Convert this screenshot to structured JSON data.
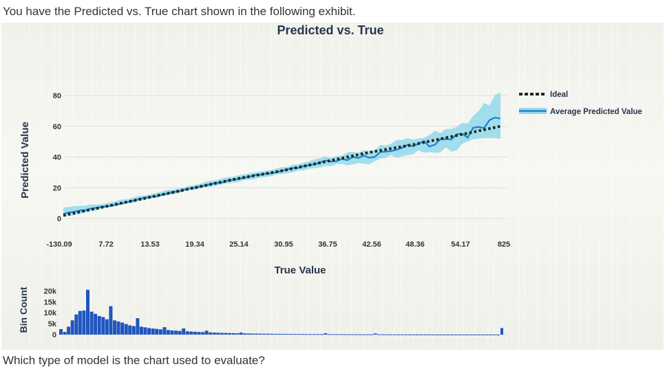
{
  "page": {
    "question_top": "You have the Predicted vs. True chart shown in the following exhibit.",
    "question_bottom": "Which type of model is the chart used to evaluate?"
  },
  "colors": {
    "ideal": "#1b2a1b",
    "average": "#1c7fd0",
    "band": "#7fd3ea",
    "bars": "#1f55c0",
    "grid": "#dedede"
  },
  "chart_data": [
    {
      "type": "line",
      "title": "Predicted vs. True",
      "xlabel": "True Value",
      "ylabel": "Predicted Value",
      "x_tick_labels": [
        "-130.09",
        "7.72",
        "13.53",
        "19.34",
        "25.14",
        "30.95",
        "36.75",
        "42.56",
        "48.36",
        "54.17",
        "825"
      ],
      "y_ticks": [
        0,
        20,
        40,
        60,
        80
      ],
      "ylim": [
        0,
        80
      ],
      "grid": true,
      "legend": "top-right",
      "series": [
        {
          "name": "Ideal",
          "style": "dotted",
          "values": [
            2,
            8,
            14,
            20,
            26,
            31,
            37,
            43,
            48,
            54,
            60
          ]
        },
        {
          "name": "Average Predicted Value",
          "style": "solid",
          "values": [
            3,
            8,
            14,
            20,
            26,
            31,
            37,
            41,
            47,
            52,
            65
          ],
          "band_low": [
            1,
            7,
            13,
            19,
            24,
            29,
            34,
            37,
            42,
            46,
            52
          ],
          "band_high": [
            7,
            10,
            16,
            22,
            28,
            33,
            40,
            45,
            52,
            58,
            82
          ]
        }
      ]
    },
    {
      "type": "bar",
      "ylabel": "Bin Count",
      "y_tick_labels": [
        "20k",
        "15k",
        "10k",
        "5k",
        "0"
      ],
      "ylim": [
        0,
        22000
      ],
      "values": [
        2500,
        1200,
        3600,
        6500,
        9200,
        10800,
        11000,
        20500,
        10500,
        9500,
        8500,
        8000,
        7000,
        13000,
        6500,
        6000,
        5500,
        4800,
        4200,
        3900,
        7500,
        3600,
        3300,
        3000,
        2800,
        2600,
        2400,
        3400,
        2100,
        1900,
        1800,
        1700,
        2800,
        1500,
        1400,
        1300,
        1200,
        1100,
        1800,
        1000,
        900,
        850,
        800,
        750,
        700,
        650,
        600,
        900,
        550,
        500,
        480,
        460,
        440,
        420,
        400,
        380,
        360,
        340,
        320,
        300,
        280,
        270,
        260,
        250,
        240,
        230,
        220,
        210,
        200,
        600,
        190,
        180,
        170,
        160,
        150,
        140,
        130,
        120,
        110,
        100,
        95,
        90,
        500,
        85,
        80,
        75,
        70,
        65,
        60,
        55,
        50,
        45,
        40,
        35,
        30,
        25,
        20,
        15,
        10,
        10,
        10,
        10,
        10,
        10,
        10,
        10,
        10,
        10,
        10,
        10,
        10,
        10,
        10,
        10,
        10,
        3000
      ]
    }
  ]
}
